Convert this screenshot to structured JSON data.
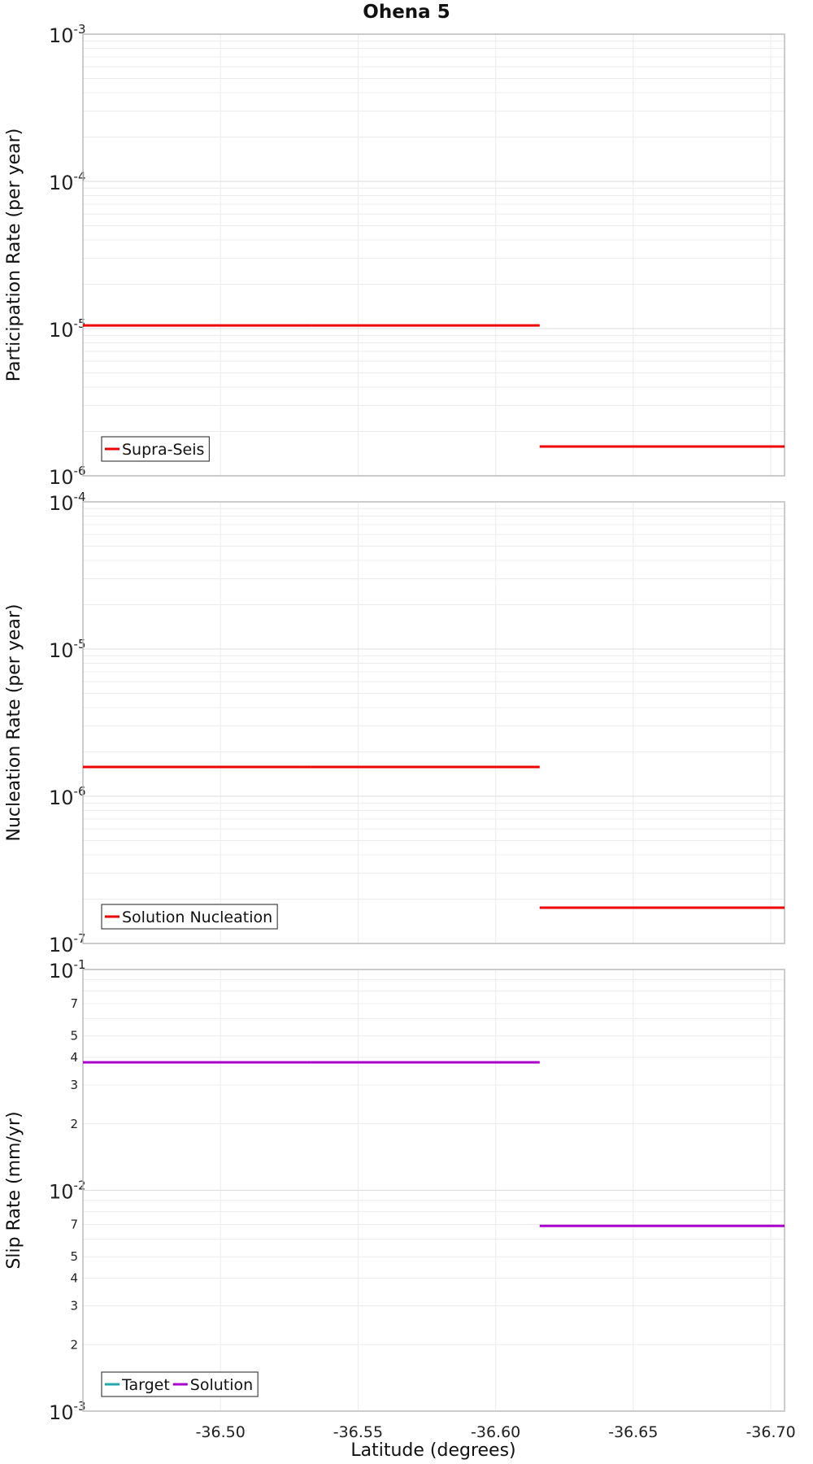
{
  "title": "Ohena 5",
  "colors": {
    "red": "#ee0000",
    "magenta": "#aa00cc",
    "teal": "#22aaaa",
    "grid": "#ececec",
    "frame": "#bbbbbb"
  },
  "chart_data": {
    "type": "line",
    "title": "Ohena 5",
    "xlabel": "Latitude (degrees)",
    "xlim": [
      -36.45,
      -36.705
    ],
    "x_ticks": [
      -36.5,
      -36.55,
      -36.6,
      -36.65,
      -36.7
    ],
    "x_tick_labels": [
      "-36.50",
      "-36.55",
      "-36.60",
      "-36.65",
      "-36.70"
    ],
    "panels": [
      {
        "ylabel": "Participation Rate (per year)",
        "yscale": "log",
        "ylim": [
          1e-06,
          0.001
        ],
        "decades": [
          {
            "value": 0.001,
            "base": "10",
            "exp": "-3"
          },
          {
            "value": 0.0001,
            "base": "10",
            "exp": "-4"
          },
          {
            "value": 1e-05,
            "base": "10",
            "exp": "-5"
          },
          {
            "value": 1e-06,
            "base": "10",
            "exp": "-6"
          }
        ],
        "minor_labels": [],
        "legend": [
          {
            "label": "Supra-Seis",
            "color": "#ee0000"
          }
        ],
        "series": [
          {
            "name": "Supra-Seis",
            "color": "#ee0000",
            "segments": [
              {
                "x": [
                  -36.45,
                  -36.533
                ],
                "y": 1.05e-05
              },
              {
                "x": [
                  -36.533,
                  -36.616
                ],
                "y": 1.05e-05
              },
              {
                "x": [
                  -36.616,
                  -36.705
                ],
                "y": 1.58e-06
              }
            ]
          }
        ]
      },
      {
        "ylabel": "Nucleation Rate (per year)",
        "yscale": "log",
        "ylim": [
          1e-07,
          0.0001
        ],
        "decades": [
          {
            "value": 0.0001,
            "base": "10",
            "exp": "-4"
          },
          {
            "value": 1e-05,
            "base": "10",
            "exp": "-5"
          },
          {
            "value": 1e-06,
            "base": "10",
            "exp": "-6"
          },
          {
            "value": 1e-07,
            "base": "10",
            "exp": "-7"
          }
        ],
        "minor_labels": [],
        "legend": [
          {
            "label": "Solution Nucleation",
            "color": "#ee0000"
          }
        ],
        "series": [
          {
            "name": "Solution Nucleation",
            "color": "#ee0000",
            "segments": [
              {
                "x": [
                  -36.45,
                  -36.533
                ],
                "y": 1.58e-06
              },
              {
                "x": [
                  -36.533,
                  -36.616
                ],
                "y": 1.58e-06
              },
              {
                "x": [
                  -36.616,
                  -36.705
                ],
                "y": 1.75e-07
              }
            ]
          }
        ]
      },
      {
        "ylabel": "Slip Rate (mm/yr)",
        "yscale": "log",
        "ylim": [
          0.001,
          0.1
        ],
        "decades": [
          {
            "value": 0.1,
            "base": "10",
            "exp": "-1"
          },
          {
            "value": 0.01,
            "base": "10",
            "exp": "-2"
          },
          {
            "value": 0.001,
            "base": "10",
            "exp": "-3"
          }
        ],
        "minor_labels": [
          {
            "value": 0.07,
            "label": "7"
          },
          {
            "value": 0.05,
            "label": "5"
          },
          {
            "value": 0.04,
            "label": "4"
          },
          {
            "value": 0.03,
            "label": "3"
          },
          {
            "value": 0.02,
            "label": "2"
          },
          {
            "value": 0.007,
            "label": "7"
          },
          {
            "value": 0.005,
            "label": "5"
          },
          {
            "value": 0.004,
            "label": "4"
          },
          {
            "value": 0.003,
            "label": "3"
          },
          {
            "value": 0.002,
            "label": "2"
          }
        ],
        "legend": [
          {
            "label": "Target",
            "color": "#22aaaa"
          },
          {
            "label": "Solution",
            "color": "#aa00cc"
          }
        ],
        "series": [
          {
            "name": "Solution",
            "color": "#aa00cc",
            "segments": [
              {
                "x": [
                  -36.45,
                  -36.533
                ],
                "y": 0.038
              },
              {
                "x": [
                  -36.533,
                  -36.616
                ],
                "y": 0.038
              },
              {
                "x": [
                  -36.616,
                  -36.705
                ],
                "y": 0.0069
              }
            ]
          }
        ]
      }
    ]
  }
}
